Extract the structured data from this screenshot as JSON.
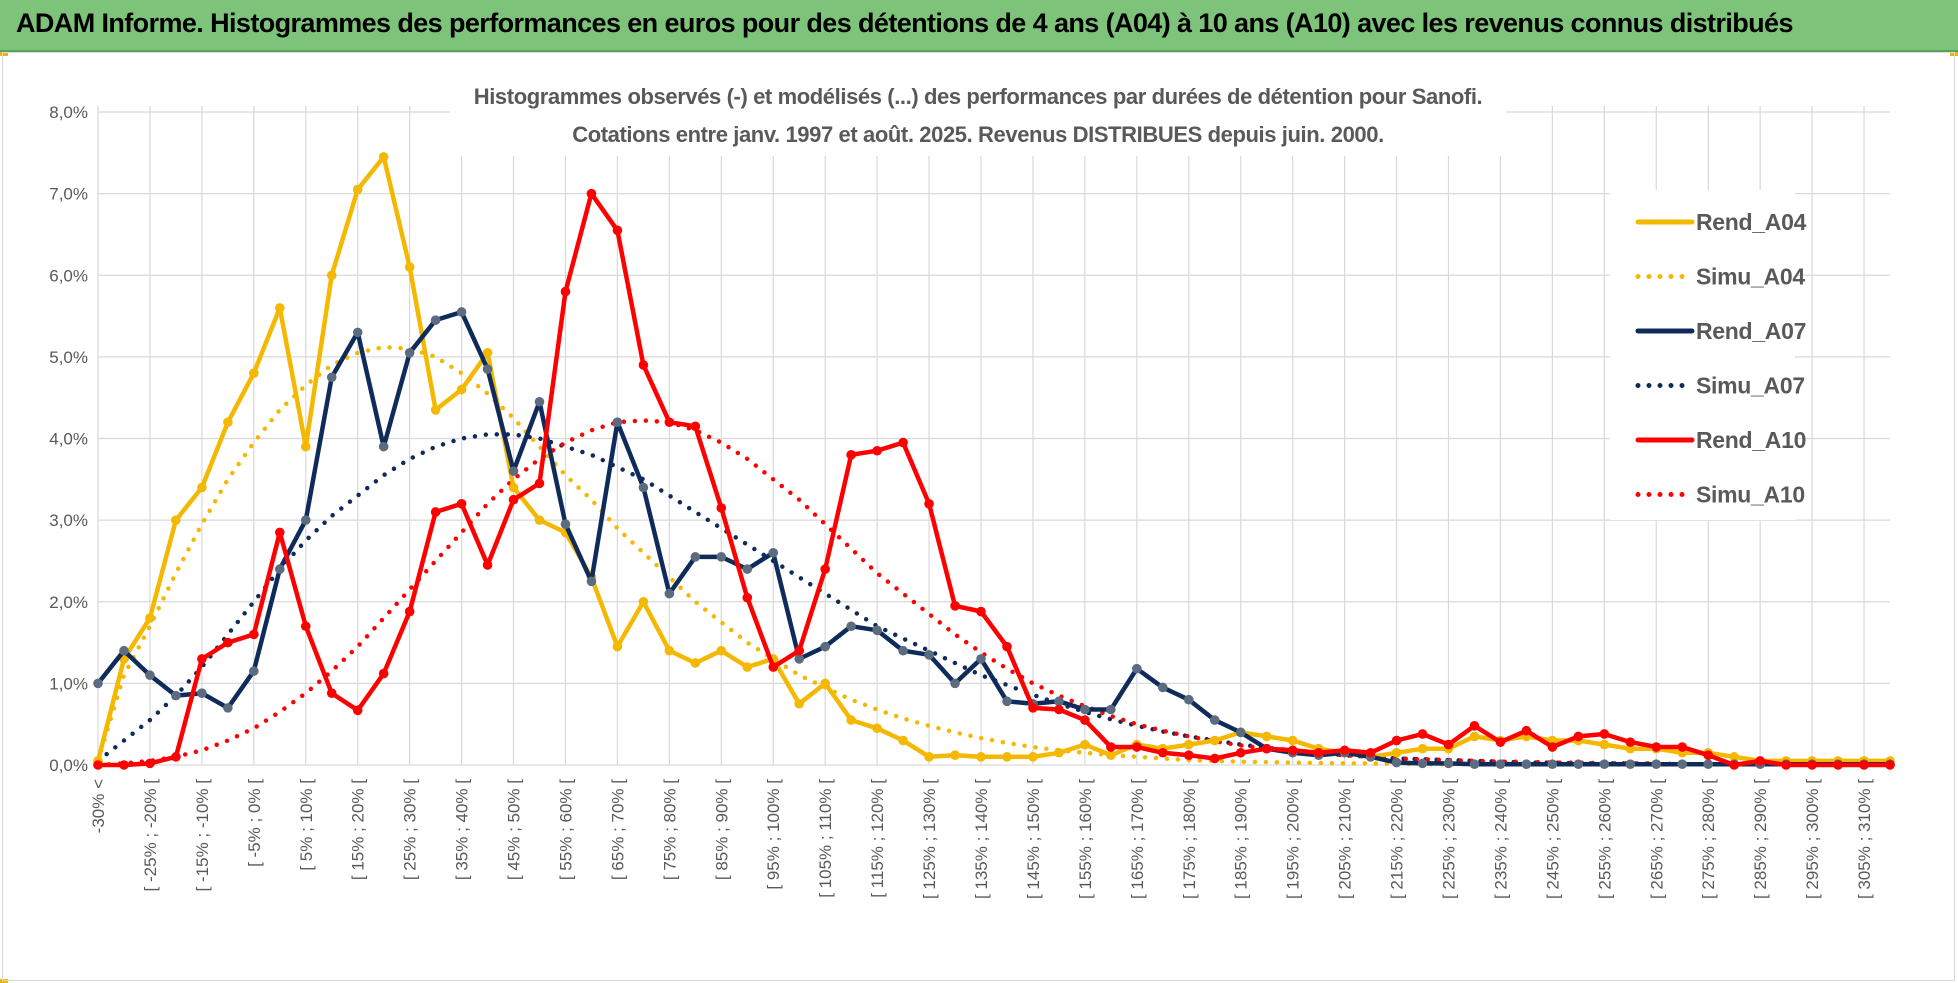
{
  "header": {
    "title": "ADAM Informe. Histogrammes des performances en euros pour des détentions de 4 ans (A04) à 10 ans (A10) avec les revenus connus distribués"
  },
  "chart_data": {
    "type": "line",
    "title": [
      "Histogrammes observés (-) et modélisés (...) des performances par durées de détention pour Sanofi.",
      "Cotations entre janv. 1997 et août. 2025. Revenus DISTRIBUES depuis juin. 2000."
    ],
    "xlabel": "",
    "ylabel": "",
    "ylim": [
      0,
      8
    ],
    "y_ticks": [
      "0,0%",
      "1,0%",
      "2,0%",
      "3,0%",
      "4,0%",
      "5,0%",
      "6,0%",
      "7,0%",
      "8,0%"
    ],
    "grid": true,
    "legend_position": "right",
    "x_labels": [
      "-30% <",
      "[ -25% ; -20% [",
      "[ -15% ; -10% [",
      "[ -5% ; 0% [",
      "[ 5% ; 10% [",
      "[ 15% ; 20% [",
      "[ 25% ; 30% [",
      "[ 35% ; 40% [",
      "[ 45% ; 50% [",
      "[ 55% ; 60% [",
      "[ 65% ; 70% [",
      "[ 75% ; 80% [",
      "[ 85% ; 90% [",
      "[ 95% ; 100% [",
      "[ 105% ; 110% [",
      "[ 115% ; 120% [",
      "[ 125% ; 130% [",
      "[ 135% ; 140% [",
      "[ 145% ; 150% [",
      "[ 155% ; 160% [",
      "[ 165% ; 170% [",
      "[ 175% ; 180% [",
      "[ 185% ; 190% [",
      "[ 195% ; 200% [",
      "[ 205% ; 210% [",
      "[ 215% ; 220% [",
      "[ 225% ; 230% [",
      "[ 235% ; 240% [",
      "[ 245% ; 250% [",
      "[ 255% ; 260% [",
      "[ 265% ; 270% [",
      "[ 275% ; 280% [",
      "[ 285% ; 290% [",
      "[ 295% ; 300% [",
      "[ 305% ; 310% ["
    ],
    "categories_count": 70,
    "series": [
      {
        "name": "Rend_A04",
        "style": "solid",
        "color": "#f5b800",
        "marker": true,
        "values": [
          0.05,
          1.3,
          1.8,
          3.0,
          3.4,
          4.2,
          4.8,
          5.6,
          3.9,
          6.0,
          7.05,
          7.45,
          6.1,
          4.35,
          4.6,
          5.05,
          3.4,
          3.0,
          2.85,
          2.3,
          1.45,
          2.0,
          1.4,
          1.25,
          1.4,
          1.2,
          1.3,
          0.75,
          1.0,
          0.55,
          0.45,
          0.3,
          0.1,
          0.12,
          0.1,
          0.1,
          0.1,
          0.15,
          0.25,
          0.12,
          0.25,
          0.2,
          0.25,
          0.3,
          0.4,
          0.35,
          0.3,
          0.2,
          0.15,
          0.1,
          0.15,
          0.2,
          0.2,
          0.35,
          0.3,
          0.35,
          0.3,
          0.3,
          0.25,
          0.2,
          0.2,
          0.15,
          0.15,
          0.1,
          0.05,
          0.05,
          0.05,
          0.05,
          0.05,
          0.05
        ]
      },
      {
        "name": "Simu_A04",
        "style": "dotted",
        "color": "#f5b800",
        "marker": false,
        "values": [
          0.05,
          1.1,
          1.7,
          2.35,
          2.95,
          3.5,
          3.95,
          4.35,
          4.65,
          4.9,
          5.05,
          5.12,
          5.1,
          5.0,
          4.8,
          4.55,
          4.25,
          3.9,
          3.55,
          3.25,
          2.9,
          2.6,
          2.3,
          2.0,
          1.75,
          1.5,
          1.3,
          1.1,
          0.95,
          0.8,
          0.68,
          0.57,
          0.48,
          0.4,
          0.33,
          0.27,
          0.22,
          0.18,
          0.15,
          0.12,
          0.1,
          0.08,
          0.06,
          0.05,
          0.04,
          0.035,
          0.03,
          0.025,
          0.02,
          0.02,
          0.015,
          0.01,
          0.01,
          0.01,
          0.01,
          0.01,
          0.01,
          0.01,
          0.01,
          0.01,
          0.01,
          0.01,
          0.01,
          0.01,
          0.01,
          0.01,
          0.01,
          0.01,
          0.01,
          0.01
        ]
      },
      {
        "name": "Rend_A07",
        "style": "solid",
        "color": "#0f2b5b",
        "marker": true,
        "values": [
          1.0,
          1.4,
          1.1,
          0.85,
          0.88,
          0.7,
          1.15,
          2.4,
          3.0,
          4.75,
          5.3,
          3.9,
          5.05,
          5.45,
          5.55,
          4.85,
          3.6,
          4.45,
          2.95,
          2.25,
          4.2,
          3.4,
          2.1,
          2.55,
          2.55,
          2.4,
          2.6,
          1.3,
          1.45,
          1.7,
          1.65,
          1.4,
          1.35,
          1.0,
          1.3,
          0.78,
          0.75,
          0.78,
          0.68,
          0.68,
          1.18,
          0.95,
          0.8,
          0.55,
          0.4,
          0.2,
          0.15,
          0.12,
          0.15,
          0.1,
          0.03,
          0.02,
          0.02,
          0.01,
          0.01,
          0.01,
          0.01,
          0.01,
          0.01,
          0.01,
          0.01,
          0.01,
          0.01,
          0.01,
          0.01,
          0.01,
          0.01,
          0.01,
          0.01,
          0.01
        ]
      },
      {
        "name": "Simu_A07",
        "style": "dotted",
        "color": "#0f2b5b",
        "marker": false,
        "values": [
          0.05,
          0.3,
          0.55,
          0.85,
          1.2,
          1.6,
          2.0,
          2.4,
          2.75,
          3.05,
          3.3,
          3.55,
          3.75,
          3.9,
          4.0,
          4.05,
          4.05,
          4.0,
          3.9,
          3.8,
          3.65,
          3.5,
          3.3,
          3.1,
          2.9,
          2.7,
          2.5,
          2.3,
          2.1,
          1.9,
          1.7,
          1.55,
          1.4,
          1.25,
          1.1,
          0.98,
          0.86,
          0.75,
          0.65,
          0.56,
          0.48,
          0.41,
          0.35,
          0.3,
          0.25,
          0.21,
          0.18,
          0.15,
          0.12,
          0.1,
          0.08,
          0.07,
          0.06,
          0.05,
          0.04,
          0.03,
          0.03,
          0.02,
          0.02,
          0.02,
          0.01,
          0.01,
          0.01,
          0.01,
          0.01,
          0.01,
          0.01,
          0.01,
          0.01,
          0.01
        ]
      },
      {
        "name": "Rend_A10",
        "style": "solid",
        "color": "#ff0000",
        "marker": true,
        "values": [
          0.0,
          0.0,
          0.02,
          0.1,
          1.3,
          1.5,
          1.6,
          2.85,
          1.7,
          0.88,
          0.67,
          1.12,
          1.88,
          3.1,
          3.2,
          2.45,
          3.25,
          3.45,
          5.8,
          7.0,
          6.55,
          4.9,
          4.2,
          4.15,
          3.15,
          2.05,
          1.2,
          1.4,
          2.4,
          3.8,
          3.85,
          3.95,
          3.2,
          1.95,
          1.88,
          1.45,
          0.7,
          0.68,
          0.55,
          0.22,
          0.22,
          0.15,
          0.12,
          0.08,
          0.15,
          0.2,
          0.18,
          0.15,
          0.18,
          0.15,
          0.3,
          0.38,
          0.25,
          0.48,
          0.28,
          0.42,
          0.22,
          0.35,
          0.38,
          0.28,
          0.22,
          0.22,
          0.12,
          0.0,
          0.05,
          0.0,
          0.0,
          0.0,
          0.0,
          0.0
        ]
      },
      {
        "name": "Simu_A10",
        "style": "dotted",
        "color": "#ff0000",
        "marker": false,
        "values": [
          0.0,
          0.02,
          0.05,
          0.1,
          0.18,
          0.3,
          0.45,
          0.65,
          0.88,
          1.15,
          1.45,
          1.8,
          2.15,
          2.5,
          2.85,
          3.2,
          3.5,
          3.75,
          3.95,
          4.1,
          4.2,
          4.22,
          4.2,
          4.1,
          3.95,
          3.75,
          3.5,
          3.25,
          2.95,
          2.65,
          2.35,
          2.1,
          1.85,
          1.6,
          1.38,
          1.18,
          1.0,
          0.85,
          0.72,
          0.6,
          0.5,
          0.42,
          0.35,
          0.29,
          0.24,
          0.2,
          0.17,
          0.14,
          0.12,
          0.1,
          0.08,
          0.07,
          0.06,
          0.05,
          0.04,
          0.04,
          0.03,
          0.03,
          0.02,
          0.02,
          0.02,
          0.01,
          0.01,
          0.01,
          0.01,
          0.01,
          0.01,
          0.01,
          0.01,
          0.01
        ]
      }
    ]
  }
}
